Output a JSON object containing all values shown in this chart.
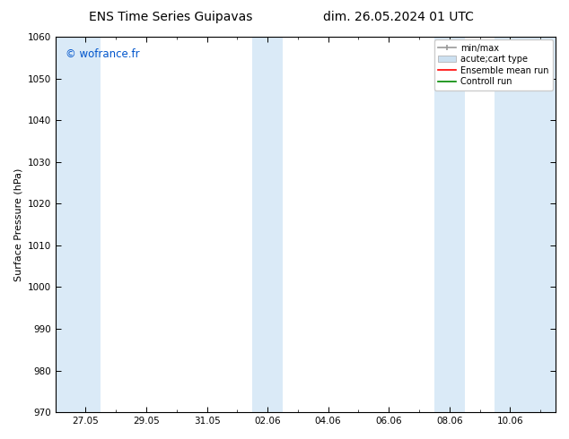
{
  "title_left": "ENS Time Series Guipavas",
  "title_right": "dim. 26.05.2024 01 UTC",
  "ylabel": "Surface Pressure (hPa)",
  "ylim": [
    970,
    1060
  ],
  "yticks": [
    970,
    980,
    990,
    1000,
    1010,
    1020,
    1030,
    1040,
    1050,
    1060
  ],
  "xtick_labels": [
    "27.05",
    "29.05",
    "31.05",
    "02.06",
    "04.06",
    "06.06",
    "08.06",
    "10.06"
  ],
  "xtick_positions": [
    0,
    2,
    4,
    6,
    8,
    10,
    12,
    14
  ],
  "shaded_bands": [
    {
      "xmin": -1,
      "xmax": 0.5
    },
    {
      "xmin": 5.5,
      "xmax": 6.5
    },
    {
      "xmin": 11.5,
      "xmax": 12.5
    },
    {
      "xmin": 13.5,
      "xmax": 15.5
    }
  ],
  "shaded_color": "#daeaf7",
  "background_color": "#ffffff",
  "watermark_text": "© wofrance.fr",
  "watermark_color": "#0055cc",
  "legend_items": [
    {
      "label": "min/max",
      "color": "#aaaaaa",
      "type": "errorbar"
    },
    {
      "label": "acute;cart type",
      "color": "#cce0f0",
      "type": "bar"
    },
    {
      "label": "Ensemble mean run",
      "color": "#ff0000",
      "type": "line"
    },
    {
      "label": "Controll run",
      "color": "#008800",
      "type": "line"
    }
  ],
  "xmin": -1,
  "xmax": 15.5,
  "title_fontsize": 10,
  "label_fontsize": 8,
  "tick_fontsize": 7.5,
  "legend_fontsize": 7
}
